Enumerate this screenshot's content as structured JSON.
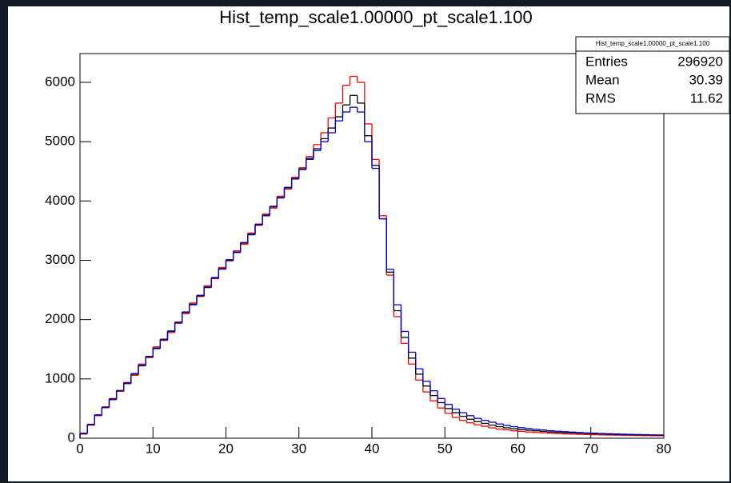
{
  "chart_data": {
    "type": "histogram",
    "title": "Hist_temp_scale1.00000_pt_scale1.100",
    "bins": [
      0,
      1,
      2,
      3,
      4,
      5,
      6,
      7,
      8,
      9,
      10,
      11,
      12,
      13,
      14,
      15,
      16,
      17,
      18,
      19,
      20,
      21,
      22,
      23,
      24,
      25,
      26,
      27,
      28,
      29,
      30,
      31,
      32,
      33,
      34,
      35,
      36,
      37,
      38,
      39,
      40,
      41,
      42,
      43,
      44,
      45,
      46,
      47,
      48,
      49,
      50,
      51,
      52,
      53,
      54,
      55,
      56,
      57,
      58,
      59,
      60,
      61,
      62,
      63,
      64,
      65,
      66,
      67,
      68,
      69,
      70,
      71,
      72,
      73,
      74,
      75,
      76,
      77,
      78,
      79,
      80
    ],
    "series": [
      {
        "color": "#ff0000",
        "values": [
          70,
          220,
          380,
          530,
          670,
          790,
          940,
          1060,
          1250,
          1360,
          1540,
          1650,
          1780,
          1960,
          2100,
          2280,
          2390,
          2570,
          2690,
          2880,
          2990,
          3160,
          3270,
          3460,
          3590,
          3780,
          3880,
          4080,
          4200,
          4400,
          4560,
          4750,
          4950,
          5150,
          5400,
          5650,
          5950,
          6100,
          6000,
          5300,
          4700,
          3750,
          2750,
          2050,
          1600,
          1250,
          980,
          780,
          630,
          510,
          420,
          350,
          300,
          260,
          225,
          200,
          175,
          155,
          140,
          125,
          115,
          105,
          97,
          90,
          84,
          78,
          73,
          69,
          65,
          62,
          59,
          56,
          54,
          52,
          50,
          48,
          46,
          44,
          42,
          41
        ]
      },
      {
        "color": "#000000",
        "values": [
          80,
          230,
          390,
          520,
          660,
          800,
          930,
          1080,
          1230,
          1370,
          1520,
          1660,
          1800,
          1950,
          2120,
          2260,
          2400,
          2550,
          2700,
          2860,
          3000,
          3140,
          3290,
          3440,
          3600,
          3760,
          3900,
          4060,
          4220,
          4380,
          4540,
          4720,
          4880,
          5050,
          5230,
          5420,
          5620,
          5780,
          5650,
          5100,
          4600,
          3700,
          2800,
          2150,
          1700,
          1350,
          1080,
          880,
          720,
          600,
          500,
          430,
          370,
          320,
          280,
          250,
          220,
          195,
          175,
          160,
          145,
          135,
          125,
          115,
          105,
          100,
          95,
          90,
          85,
          80,
          75,
          72,
          68,
          65,
          62,
          60,
          57,
          55,
          52,
          50
        ]
      },
      {
        "color": "#0000cc",
        "values": [
          85,
          235,
          395,
          515,
          650,
          805,
          920,
          1090,
          1220,
          1380,
          1510,
          1670,
          1810,
          1940,
          2130,
          2250,
          2410,
          2540,
          2710,
          2850,
          3010,
          3130,
          3300,
          3430,
          3610,
          3750,
          3910,
          4050,
          4230,
          4370,
          4530,
          4700,
          4850,
          5000,
          5150,
          5350,
          5500,
          5580,
          5500,
          5000,
          4550,
          3700,
          2850,
          2250,
          1800,
          1450,
          1170,
          960,
          800,
          670,
          570,
          490,
          430,
          380,
          335,
          300,
          270,
          240,
          215,
          195,
          178,
          163,
          150,
          138,
          127,
          118,
          110,
          103,
          96,
          90,
          85,
          80,
          76,
          72,
          68,
          65,
          62,
          60,
          57,
          55
        ]
      }
    ],
    "xlim": [
      0,
      80
    ],
    "xticks": [
      0,
      10,
      20,
      30,
      40,
      50,
      60,
      70,
      80
    ],
    "ylim": [
      0,
      6485
    ],
    "yticks": [
      0,
      1000,
      2000,
      3000,
      4000,
      5000,
      6000
    ],
    "stats": {
      "title": "Hist_temp_scale1.00000_pt_scale1.100",
      "rows": [
        [
          "Entries",
          296920
        ],
        [
          "Mean",
          30.39
        ],
        [
          "RMS",
          11.62
        ]
      ]
    }
  }
}
